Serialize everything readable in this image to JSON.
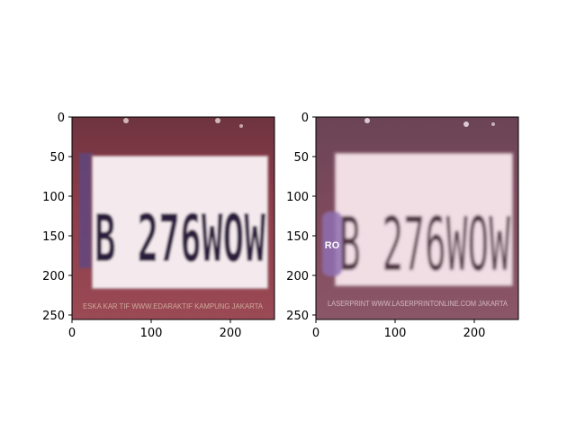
{
  "panels": [
    {
      "plate_text": "B 276WOW",
      "footer_text": "ESKA KAR TIF  WWW.EDARAKTIF  KAMPUNG JAKARTA",
      "side_badge": "",
      "x_ticks": [
        "0",
        "100",
        "200"
      ],
      "y_ticks": [
        "0",
        "50",
        "100",
        "150",
        "200",
        "250"
      ]
    },
    {
      "plate_text": "B 276WOW",
      "footer_text": "LASERPRINT  WWW.LASERPRINTONLINE.COM  JAKARTA",
      "side_badge": "RO",
      "x_ticks": [
        "0",
        "100",
        "200"
      ],
      "y_ticks": [
        "0",
        "50",
        "100",
        "150",
        "200",
        "250"
      ]
    }
  ],
  "colors": {
    "frame_left": "#8a3c48",
    "frame_right": "#7e4a5c",
    "plate_left": "#f4eaee",
    "plate_right": "#f1dde4",
    "text_left": "#2a1a3e",
    "text_right": "#4b2e3e",
    "badge": "#8f6fb0"
  }
}
